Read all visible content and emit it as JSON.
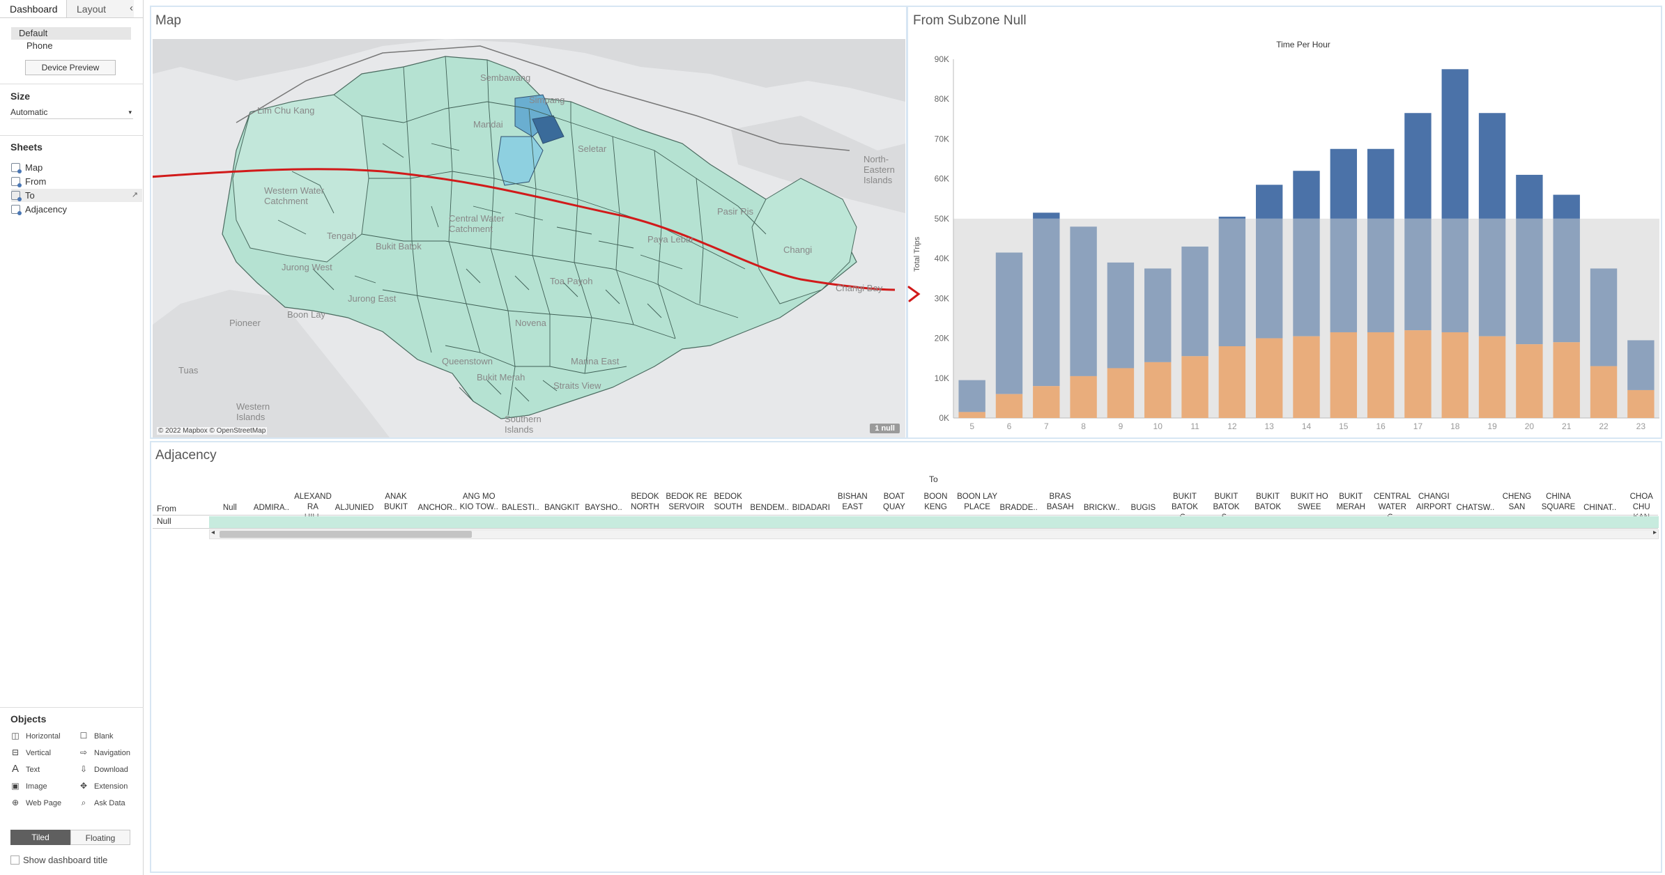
{
  "left_panel": {
    "tabs": [
      "Dashboard",
      "Layout"
    ],
    "devices": [
      "Default",
      "Phone"
    ],
    "device_preview": "Device Preview",
    "size_title": "Size",
    "size_value": "Automatic",
    "sheets_title": "Sheets",
    "sheets": [
      "Map",
      "From",
      "To",
      "Adjacency"
    ],
    "objects_title": "Objects",
    "objects": [
      {
        "label": "Horizontal",
        "icon": "horizontal-icon"
      },
      {
        "label": "Blank",
        "icon": "blank-icon"
      },
      {
        "label": "Vertical",
        "icon": "vertical-icon"
      },
      {
        "label": "Navigation",
        "icon": "navigation-icon"
      },
      {
        "label": "Text",
        "icon": "text-icon"
      },
      {
        "label": "Download",
        "icon": "download-icon"
      },
      {
        "label": "Image",
        "icon": "image-icon"
      },
      {
        "label": "Extension",
        "icon": "extension-icon"
      },
      {
        "label": "Web Page",
        "icon": "web-page-icon"
      },
      {
        "label": "Ask Data",
        "icon": "ask-data-icon"
      }
    ],
    "tiled": "Tiled",
    "floating": "Floating",
    "show_title": "Show dashboard title"
  },
  "map_panel": {
    "title": "Map",
    "attribution": "© 2022 Mapbox © OpenStreetMap",
    "null_badge": "1 null",
    "labels": [
      "Lim Chu Kang",
      "Sembawang",
      "Simpang",
      "Mandai",
      "Seletar",
      "North-Eastern Islands",
      "Western Water Catchment",
      "Central Water Catchment",
      "Pasir Ris",
      "Paya Lebar",
      "Tengah",
      "Bukit Batok",
      "Jurong West",
      "Jurong East",
      "Changi",
      "Changi Bay",
      "Pioneer",
      "Boon Lay",
      "Toa Payoh",
      "Novena",
      "Queenstown",
      "Bukit Merah",
      "Marina East",
      "Tuas",
      "Western Islands",
      "Straits View",
      "Southern Islands"
    ]
  },
  "chart_panel": {
    "title": "From Subzone Null"
  },
  "chart_data": {
    "type": "bar",
    "title": "Time Per Hour",
    "xlabel": "",
    "ylabel": "Total Trips",
    "ylim": [
      0,
      90000
    ],
    "yticks": [
      "0K",
      "10K",
      "20K",
      "30K",
      "40K",
      "50K",
      "60K",
      "70K",
      "80K",
      "90K"
    ],
    "categories": [
      "5",
      "6",
      "7",
      "8",
      "9",
      "10",
      "11",
      "12",
      "13",
      "14",
      "15",
      "16",
      "17",
      "18",
      "19",
      "20",
      "21",
      "22",
      "23"
    ],
    "series": [
      {
        "values": [
          9500,
          41500,
          51500,
          48000,
          39000,
          37500,
          43000,
          50500,
          58500,
          62000,
          67500,
          67500,
          76500,
          87500,
          76500,
          61000,
          56000,
          37500,
          19500
        ]
      },
      {
        "values": [
          1500,
          6000,
          8000,
          10500,
          12500,
          14000,
          15500,
          18000,
          20000,
          20500,
          21500,
          21500,
          22000,
          21500,
          20500,
          18500,
          19000,
          13000,
          7000
        ]
      }
    ],
    "band_upper": 50000,
    "colors": {
      "dark": "#4b72a8",
      "light": "#8da2bd",
      "orange": "#e9ad7c",
      "band": "#e6e6e6"
    }
  },
  "adjacency_panel": {
    "title": "Adjacency",
    "to_label": "To",
    "from_label": "From",
    "row_label": "Null",
    "columns": [
      "Null",
      "ADMIRA..",
      "ALEXAND RA HILL",
      "ALJUNIED",
      "ANAK BUKIT",
      "ANCHOR..",
      "ANG MO KIO TOW..",
      "BALESTI..",
      "BANGKIT",
      "BAYSHO..",
      "BEDOK NORTH",
      "BEDOK RE SERVOIR",
      "BEDOK SOUTH",
      "BENDEM..",
      "BIDADARI",
      "BISHAN EAST",
      "BOAT QUAY",
      "BOON KENG",
      "BOON LAY PLACE",
      "BRADDE..",
      "BRAS BASAH",
      "BRICKW..",
      "BUGIS",
      "BUKIT BATOK C..",
      "BUKIT BATOK S..",
      "BUKIT BATOK ..",
      "BUKIT HO SWEE",
      "BUKIT MERAH",
      "CENTRAL WATER C..",
      "CHANGI AIRPORT",
      "CHATSW..",
      "CHENG SAN",
      "CHINA SQUARE",
      "CHINAT..",
      "CHOA CHU KAN"
    ]
  }
}
